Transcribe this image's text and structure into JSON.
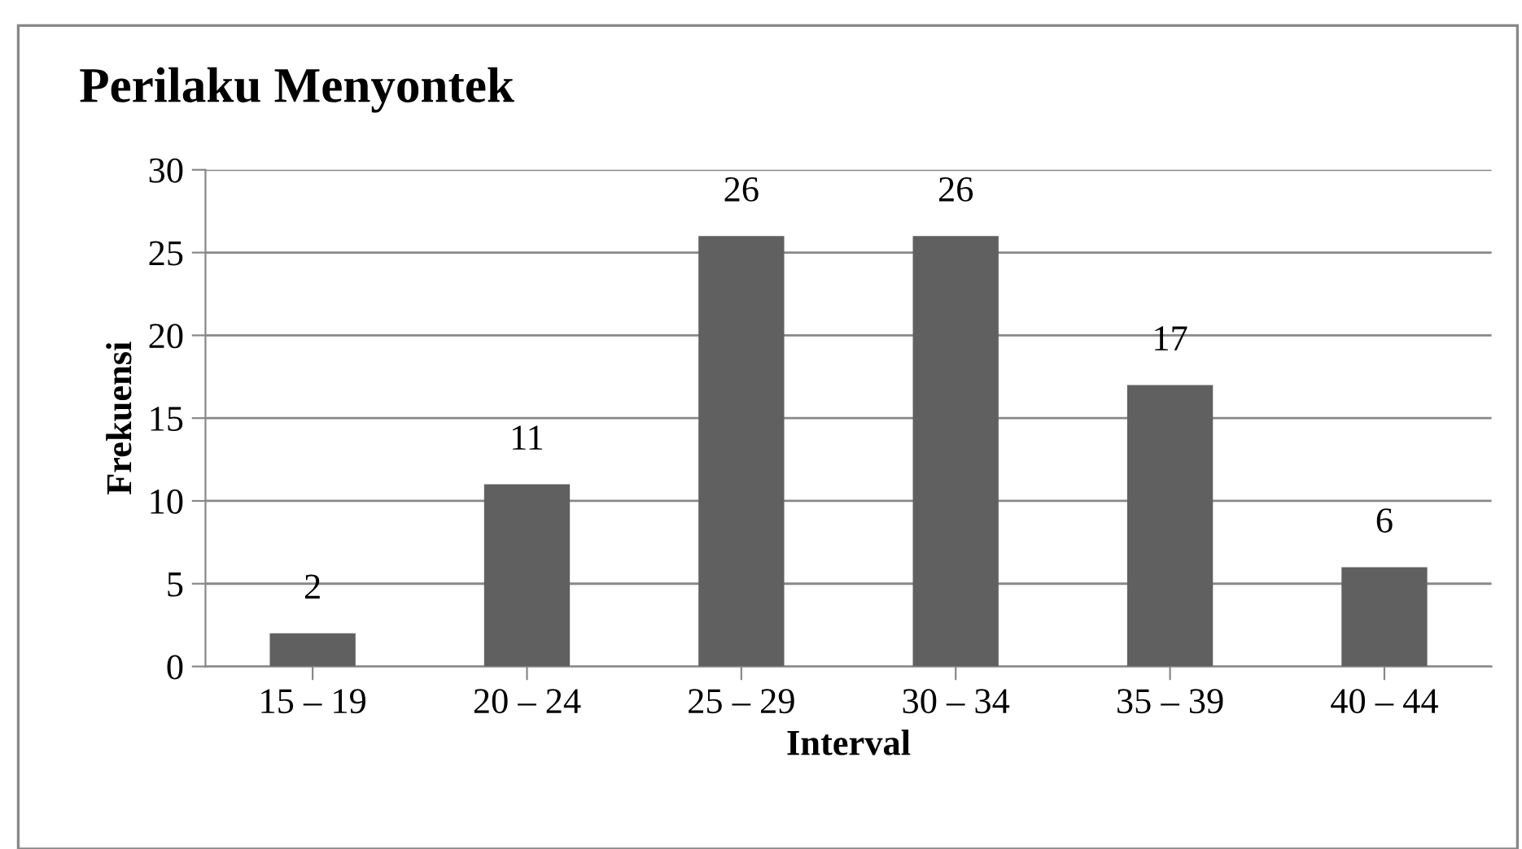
{
  "chart_data": {
    "type": "bar",
    "title": "Perilaku Menyontek",
    "xlabel": "Interval",
    "ylabel": "Frekuensi",
    "categories": [
      "15 – 19",
      "20 – 24",
      "25 – 29",
      "30 – 34",
      "35 – 39",
      "40 – 44"
    ],
    "values": [
      2,
      11,
      26,
      26,
      17,
      6
    ],
    "color": "#606060",
    "ylim": [
      0,
      30
    ],
    "yticks": [
      0,
      5,
      10,
      15,
      20,
      25,
      30
    ],
    "grid": "y",
    "data_labels": true
  }
}
